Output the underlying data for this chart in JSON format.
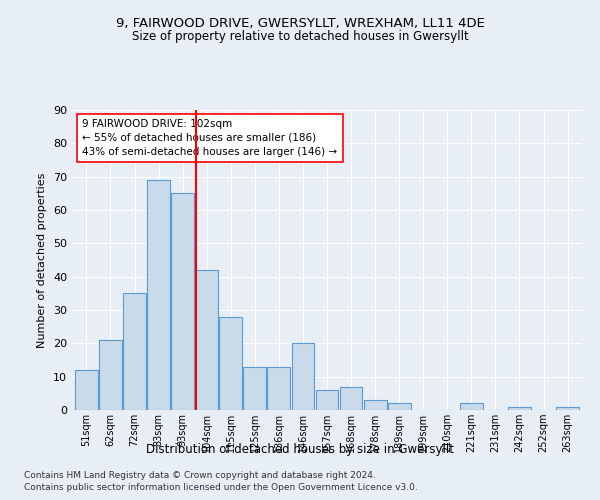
{
  "title": "9, FAIRWOOD DRIVE, GWERSYLLT, WREXHAM, LL11 4DE",
  "subtitle": "Size of property relative to detached houses in Gwersyllt",
  "xlabel": "Distribution of detached houses by size in Gwersyllt",
  "ylabel": "Number of detached properties",
  "bar_labels": [
    "51sqm",
    "62sqm",
    "72sqm",
    "83sqm",
    "93sqm",
    "104sqm",
    "115sqm",
    "125sqm",
    "136sqm",
    "146sqm",
    "157sqm",
    "168sqm",
    "178sqm",
    "189sqm",
    "199sqm",
    "210sqm",
    "221sqm",
    "231sqm",
    "242sqm",
    "252sqm",
    "263sqm"
  ],
  "bar_values": [
    12,
    21,
    35,
    69,
    65,
    42,
    28,
    13,
    13,
    20,
    6,
    7,
    3,
    2,
    0,
    0,
    2,
    0,
    1,
    0,
    1
  ],
  "bar_color": "#c9daea",
  "bar_edge_color": "#5b9bd5",
  "property_label": "9 FAIRWOOD DRIVE: 102sqm",
  "annotation_line1": "← 55% of detached houses are smaller (186)",
  "annotation_line2": "43% of semi-detached houses are larger (146) →",
  "vline_x_index": 4.55,
  "ylim": [
    0,
    90
  ],
  "yticks": [
    0,
    10,
    20,
    30,
    40,
    50,
    60,
    70,
    80,
    90
  ],
  "footnote1": "Contains HM Land Registry data © Crown copyright and database right 2024.",
  "footnote2": "Contains public sector information licensed under the Open Government Licence v3.0.",
  "bg_color": "#e8eef5",
  "plot_bg_color": "#e8eef5"
}
